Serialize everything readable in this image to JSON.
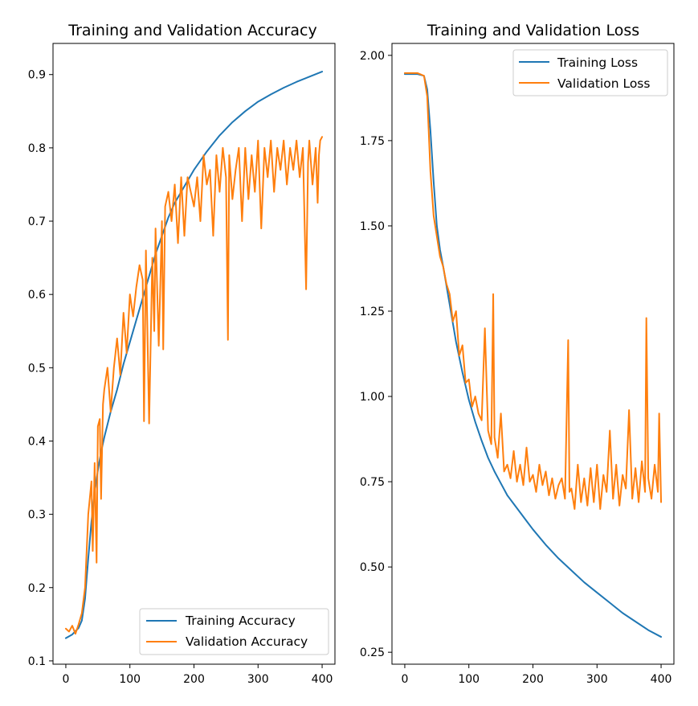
{
  "colors": {
    "training": "#1f77b4",
    "validation": "#ff7f0e"
  },
  "chart_data": [
    {
      "type": "line",
      "title": "Training and Validation Accuracy",
      "xlabel": "",
      "ylabel": "",
      "xlim": [
        -20,
        420
      ],
      "ylim": [
        0.0955,
        0.9425
      ],
      "xticks": [
        0,
        100,
        200,
        300,
        400
      ],
      "yticks": [
        0.1,
        0.2,
        0.3,
        0.4,
        0.5,
        0.6,
        0.7,
        0.8,
        0.9
      ],
      "grid": false,
      "legend_position": "lower-right",
      "series": [
        {
          "name": "Training Accuracy",
          "color_key": "training",
          "x": [
            0,
            10,
            20,
            25,
            30,
            35,
            40,
            45,
            50,
            55,
            60,
            70,
            80,
            90,
            100,
            110,
            120,
            130,
            140,
            150,
            160,
            170,
            180,
            190,
            200,
            220,
            240,
            260,
            280,
            300,
            320,
            340,
            360,
            380,
            400
          ],
          "y": [
            0.131,
            0.136,
            0.145,
            0.155,
            0.185,
            0.24,
            0.29,
            0.33,
            0.36,
            0.385,
            0.405,
            0.44,
            0.47,
            0.505,
            0.535,
            0.565,
            0.595,
            0.625,
            0.655,
            0.68,
            0.705,
            0.725,
            0.74,
            0.755,
            0.77,
            0.795,
            0.817,
            0.835,
            0.85,
            0.863,
            0.873,
            0.882,
            0.89,
            0.897,
            0.904
          ]
        },
        {
          "name": "Validation Accuracy",
          "color_key": "validation",
          "x": [
            0,
            5,
            10,
            15,
            20,
            25,
            30,
            35,
            40,
            42,
            45,
            48,
            50,
            53,
            55,
            58,
            60,
            65,
            70,
            75,
            80,
            85,
            90,
            95,
            100,
            105,
            110,
            115,
            120,
            122,
            125,
            130,
            135,
            138,
            140,
            145,
            150,
            152,
            155,
            160,
            165,
            170,
            175,
            180,
            185,
            190,
            195,
            200,
            205,
            210,
            215,
            220,
            225,
            230,
            235,
            240,
            245,
            250,
            253,
            255,
            260,
            265,
            270,
            275,
            280,
            285,
            290,
            295,
            300,
            305,
            310,
            315,
            320,
            325,
            330,
            335,
            340,
            345,
            350,
            355,
            360,
            365,
            370,
            375,
            378,
            380,
            385,
            390,
            393,
            395,
            397,
            400
          ],
          "y": [
            0.144,
            0.14,
            0.148,
            0.137,
            0.15,
            0.165,
            0.2,
            0.3,
            0.345,
            0.25,
            0.37,
            0.234,
            0.42,
            0.43,
            0.321,
            0.45,
            0.47,
            0.5,
            0.44,
            0.5,
            0.54,
            0.49,
            0.575,
            0.52,
            0.6,
            0.57,
            0.61,
            0.64,
            0.62,
            0.427,
            0.66,
            0.424,
            0.65,
            0.55,
            0.69,
            0.53,
            0.7,
            0.525,
            0.72,
            0.74,
            0.7,
            0.75,
            0.67,
            0.76,
            0.68,
            0.76,
            0.74,
            0.72,
            0.76,
            0.7,
            0.79,
            0.75,
            0.77,
            0.68,
            0.79,
            0.74,
            0.8,
            0.76,
            0.538,
            0.79,
            0.73,
            0.77,
            0.8,
            0.7,
            0.8,
            0.73,
            0.79,
            0.74,
            0.81,
            0.69,
            0.8,
            0.76,
            0.81,
            0.74,
            0.8,
            0.77,
            0.81,
            0.75,
            0.8,
            0.77,
            0.81,
            0.76,
            0.8,
            0.607,
            0.78,
            0.81,
            0.75,
            0.8,
            0.725,
            0.79,
            0.81,
            0.815
          ]
        }
      ]
    },
    {
      "type": "line",
      "title": "Training and Validation Loss",
      "xlabel": "",
      "ylabel": "",
      "xlim": [
        -20,
        420
      ],
      "ylim": [
        0.215,
        2.035
      ],
      "xticks": [
        0,
        100,
        200,
        300,
        400
      ],
      "yticks": [
        0.25,
        0.5,
        0.75,
        1.0,
        1.25,
        1.5,
        1.75,
        2.0
      ],
      "grid": false,
      "legend_position": "upper-right",
      "series": [
        {
          "name": "Training Loss",
          "color_key": "training",
          "x": [
            0,
            20,
            30,
            35,
            40,
            45,
            50,
            55,
            60,
            70,
            80,
            90,
            100,
            110,
            120,
            130,
            140,
            150,
            160,
            170,
            180,
            190,
            200,
            220,
            240,
            260,
            280,
            300,
            320,
            340,
            360,
            380,
            400
          ],
          "y": [
            1.945,
            1.945,
            1.94,
            1.9,
            1.78,
            1.63,
            1.5,
            1.43,
            1.38,
            1.27,
            1.16,
            1.07,
            0.99,
            0.925,
            0.87,
            0.82,
            0.78,
            0.745,
            0.71,
            0.685,
            0.66,
            0.635,
            0.61,
            0.565,
            0.525,
            0.49,
            0.455,
            0.425,
            0.395,
            0.365,
            0.34,
            0.315,
            0.295
          ]
        },
        {
          "name": "Validation Loss",
          "color_key": "validation",
          "x": [
            0,
            20,
            30,
            35,
            40,
            45,
            50,
            55,
            60,
            65,
            70,
            75,
            80,
            85,
            90,
            95,
            100,
            105,
            110,
            115,
            120,
            125,
            130,
            135,
            138,
            140,
            145,
            150,
            155,
            160,
            165,
            170,
            175,
            180,
            185,
            190,
            195,
            200,
            205,
            210,
            215,
            220,
            225,
            230,
            235,
            240,
            245,
            250,
            255,
            257,
            260,
            265,
            270,
            275,
            280,
            285,
            290,
            295,
            300,
            305,
            310,
            315,
            320,
            325,
            330,
            335,
            340,
            345,
            350,
            355,
            360,
            365,
            370,
            375,
            377,
            380,
            385,
            390,
            395,
            397,
            400
          ],
          "y": [
            1.948,
            1.948,
            1.94,
            1.88,
            1.66,
            1.53,
            1.47,
            1.41,
            1.38,
            1.33,
            1.3,
            1.22,
            1.25,
            1.12,
            1.15,
            1.04,
            1.05,
            0.97,
            1.0,
            0.95,
            0.93,
            1.2,
            0.9,
            0.86,
            1.3,
            0.88,
            0.82,
            0.95,
            0.78,
            0.8,
            0.76,
            0.84,
            0.75,
            0.8,
            0.74,
            0.85,
            0.75,
            0.77,
            0.72,
            0.8,
            0.74,
            0.78,
            0.71,
            0.76,
            0.7,
            0.74,
            0.76,
            0.7,
            1.165,
            0.72,
            0.73,
            0.67,
            0.8,
            0.69,
            0.76,
            0.68,
            0.79,
            0.69,
            0.8,
            0.67,
            0.77,
            0.72,
            0.9,
            0.7,
            0.8,
            0.68,
            0.77,
            0.73,
            0.96,
            0.7,
            0.79,
            0.69,
            0.81,
            0.72,
            1.23,
            0.76,
            0.7,
            0.8,
            0.72,
            0.95,
            0.69
          ]
        }
      ]
    }
  ]
}
